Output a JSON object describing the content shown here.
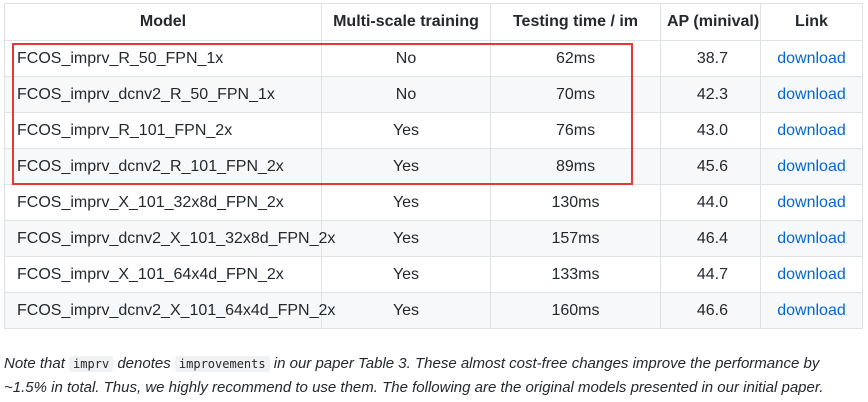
{
  "table": {
    "headers": [
      "Model",
      "Multi-scale training",
      "Testing time / im",
      "AP (minival)",
      "Link"
    ],
    "rows": [
      {
        "model": "FCOS_imprv_R_50_FPN_1x",
        "multiscale": "No",
        "time": "62ms",
        "ap": "38.7",
        "link": "download"
      },
      {
        "model": "FCOS_imprv_dcnv2_R_50_FPN_1x",
        "multiscale": "No",
        "time": "70ms",
        "ap": "42.3",
        "link": "download"
      },
      {
        "model": "FCOS_imprv_R_101_FPN_2x",
        "multiscale": "Yes",
        "time": "76ms",
        "ap": "43.0",
        "link": "download"
      },
      {
        "model": "FCOS_imprv_dcnv2_R_101_FPN_2x",
        "multiscale": "Yes",
        "time": "89ms",
        "ap": "45.6",
        "link": "download"
      },
      {
        "model": "FCOS_imprv_X_101_32x8d_FPN_2x",
        "multiscale": "Yes",
        "time": "130ms",
        "ap": "44.0",
        "link": "download"
      },
      {
        "model": "FCOS_imprv_dcnv2_X_101_32x8d_FPN_2x",
        "multiscale": "Yes",
        "time": "157ms",
        "ap": "46.4",
        "link": "download"
      },
      {
        "model": "FCOS_imprv_X_101_64x4d_FPN_2x",
        "multiscale": "Yes",
        "time": "133ms",
        "ap": "44.7",
        "link": "download"
      },
      {
        "model": "FCOS_imprv_dcnv2_X_101_64x4d_FPN_2x",
        "multiscale": "Yes",
        "time": "160ms",
        "ap": "46.6",
        "link": "download"
      }
    ]
  },
  "note": {
    "part1": "Note that ",
    "code1": "imprv",
    "part2": " denotes ",
    "code2": "improvements",
    "part3": " in our paper Table 3. These almost cost-free changes improve the performance by ~1.5% in total. Thus, we highly recommend to use them. The following are the original models presented in our initial paper."
  },
  "colors": {
    "link": "#0366d6",
    "highlight_border": "#e53935",
    "row_stripe": "#f6f8fa"
  }
}
